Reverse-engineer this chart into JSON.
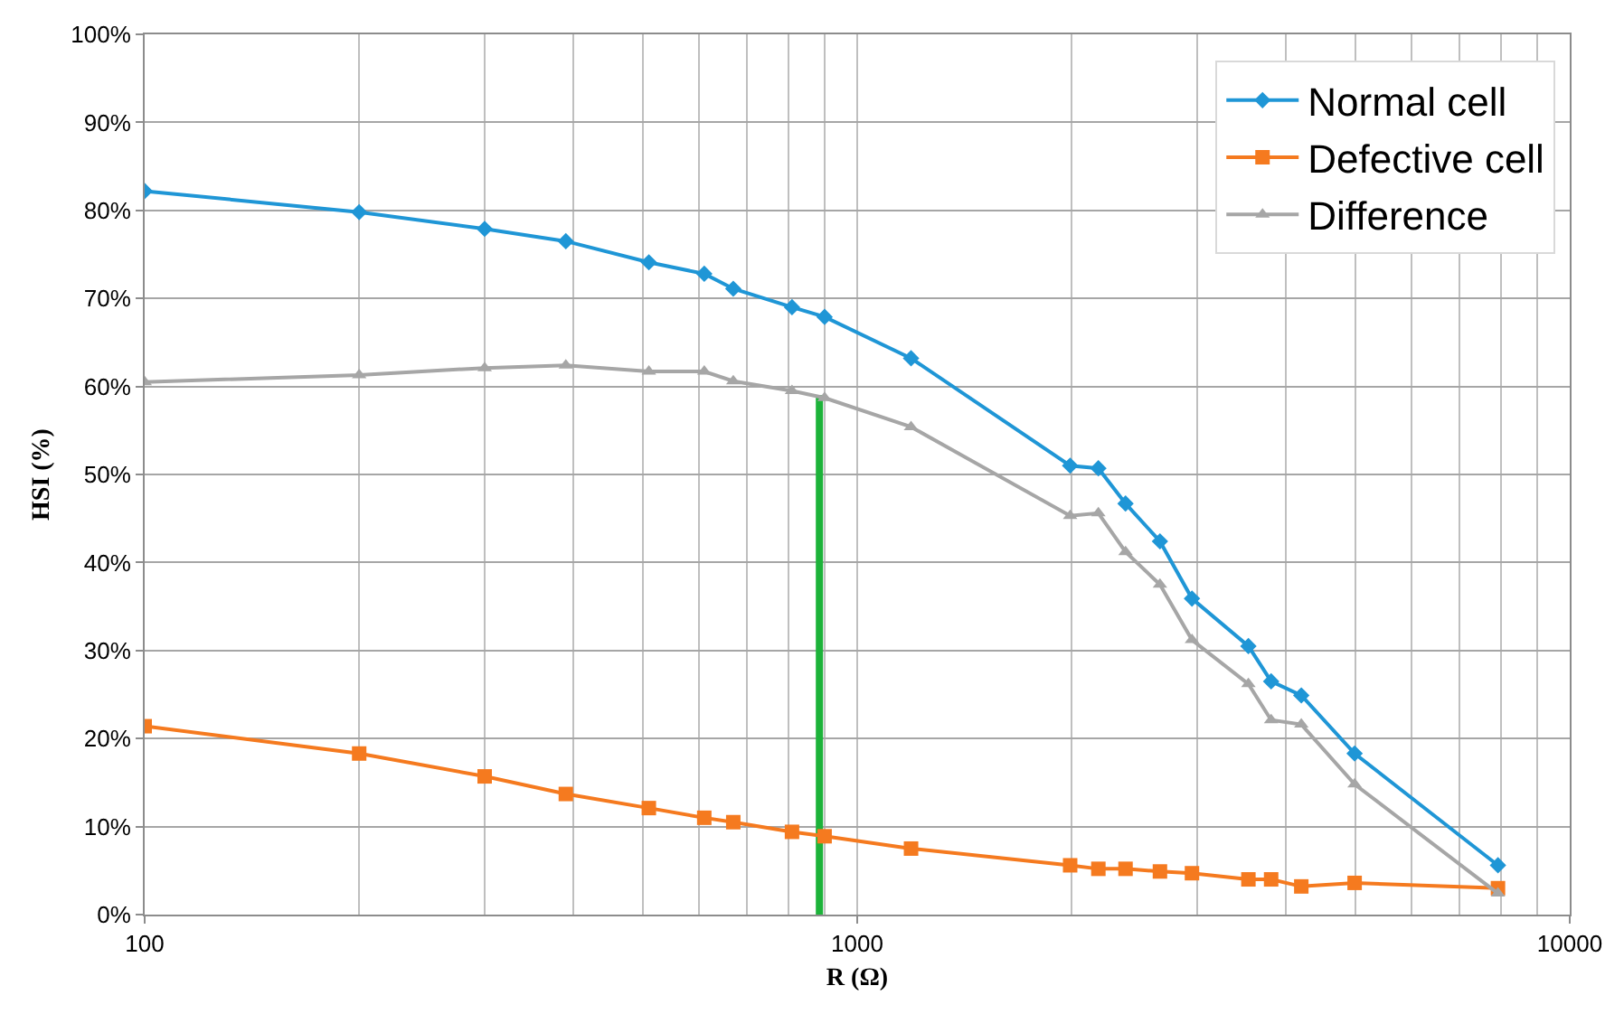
{
  "chart_data": {
    "type": "line",
    "xlabel": "R (Ω)",
    "ylabel": "HSI (%)",
    "log": "x",
    "grid": true,
    "legend": "top right",
    "xlim": [
      100,
      10000
    ],
    "xticks": [
      100,
      1000,
      10000
    ],
    "ylim": [
      0,
      100
    ],
    "yticks": [
      {
        "value": 0,
        "label": "0%"
      },
      {
        "value": 10,
        "label": "10%"
      },
      {
        "value": 20,
        "label": "20%"
      },
      {
        "value": 30,
        "label": "30%"
      },
      {
        "value": 40,
        "label": "40%"
      },
      {
        "value": 50,
        "label": "50%"
      },
      {
        "value": 60,
        "label": "60%"
      },
      {
        "value": 70,
        "label": "70%"
      },
      {
        "value": 80,
        "label": "80%"
      },
      {
        "value": 90,
        "label": "90%"
      },
      {
        "value": 100,
        "label": "100%"
      }
    ],
    "x": [
      100,
      200,
      300,
      390,
      510,
      610,
      670,
      810,
      900,
      1190,
      1990,
      2180,
      2380,
      2660,
      2950,
      3540,
      3810,
      4200,
      4990,
      7930
    ],
    "series": [
      {
        "color": "#1db33a",
        "marker": "none",
        "x": [
          885,
          885
        ],
        "values": [
          0,
          59
        ]
      },
      {
        "name": "Normal cell",
        "color": "#1f96d6",
        "marker": "diamond",
        "values": [
          82.2,
          79.8,
          77.9,
          76.5,
          74.1,
          72.8,
          71.1,
          69.0,
          67.9,
          63.2,
          51.0,
          50.7,
          46.7,
          42.4,
          35.9,
          30.5,
          26.5,
          24.9,
          18.3,
          5.6
        ]
      },
      {
        "name": "Defective cell",
        "color": "#f57a1f",
        "marker": "square",
        "values": [
          21.4,
          18.3,
          15.7,
          13.7,
          12.1,
          11.0,
          10.5,
          9.4,
          8.9,
          7.5,
          5.6,
          5.2,
          5.2,
          4.9,
          4.7,
          4.0,
          4.0,
          3.2,
          3.6,
          3.0
        ]
      },
      {
        "name": "Difference",
        "color": "#a6a6a6",
        "marker": "triangle",
        "values": [
          60.5,
          61.3,
          62.1,
          62.4,
          61.7,
          61.7,
          60.6,
          59.5,
          58.7,
          55.4,
          45.3,
          45.6,
          41.2,
          37.5,
          31.2,
          26.2,
          22.1,
          21.6,
          14.8,
          2.4
        ]
      }
    ]
  }
}
